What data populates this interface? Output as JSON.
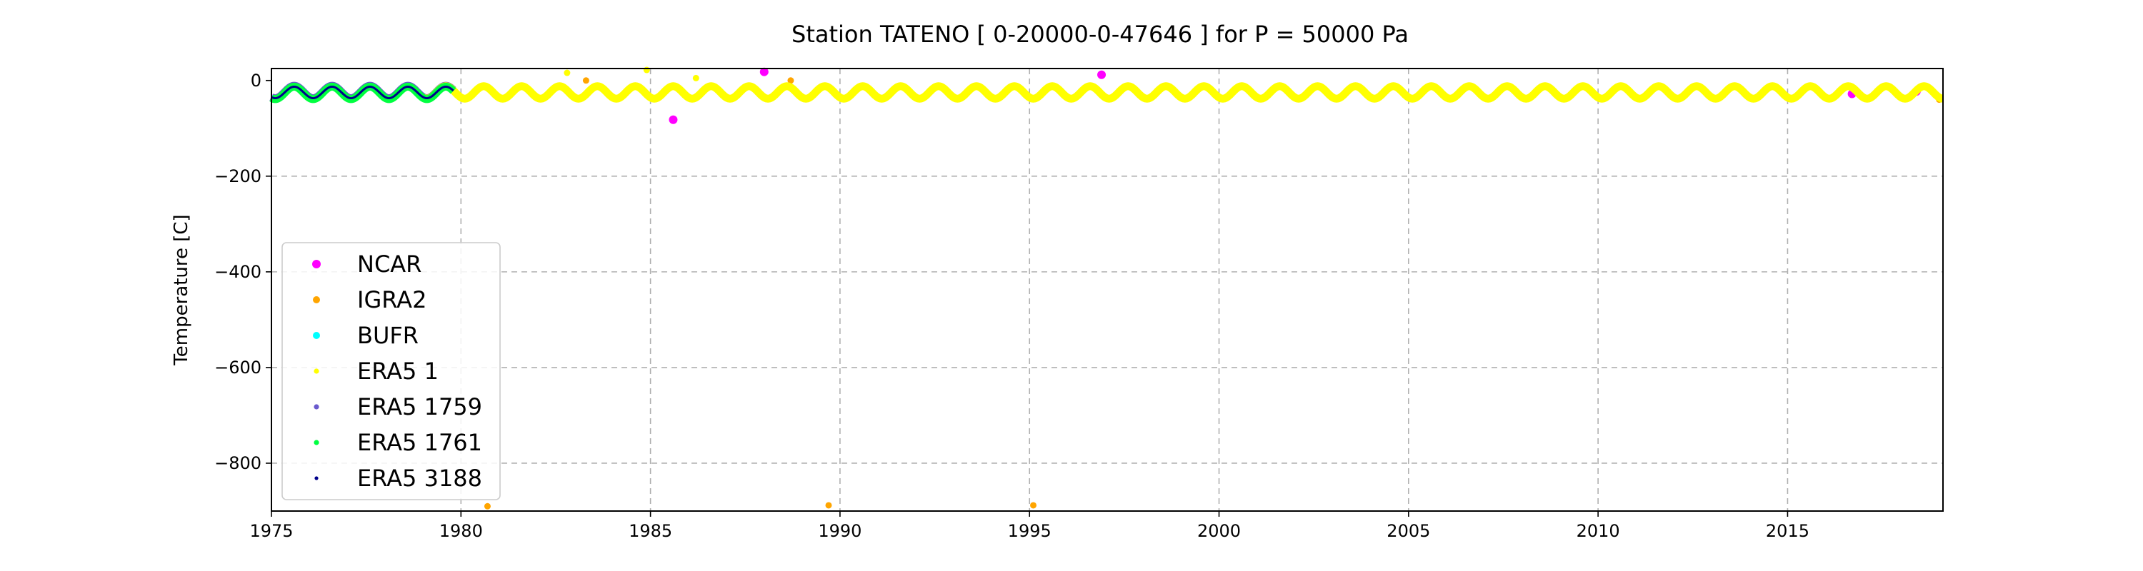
{
  "chart_data": {
    "type": "scatter",
    "title": "Station  TATENO [ 0-20000-0-47646 ]  for P = 50000 Pa",
    "xlabel": "",
    "ylabel": "Temperature [C]",
    "xlim": [
      1975,
      2019.1
    ],
    "ylim": [
      -900,
      25
    ],
    "xticks": [
      1975,
      1980,
      1985,
      1990,
      1995,
      2000,
      2005,
      2010,
      2015
    ],
    "xtick_labels": [
      "1975",
      "1980",
      "1985",
      "1990",
      "1995",
      "2000",
      "2005",
      "2010",
      "2015"
    ],
    "yticks": [
      0,
      -200,
      -400,
      -600,
      -800
    ],
    "ytick_labels": [
      "0",
      "−200",
      "−400",
      "−600",
      "−800"
    ],
    "grid": true,
    "legend_position": "lower-left",
    "series": [
      {
        "name": "NCAR",
        "color": "#ff00ff",
        "marker_size": "large",
        "x_range": [
          1975.0,
          2019.1
        ],
        "mean": -23,
        "amplitude": 13,
        "outliers": [
          [
            1985.6,
            -82
          ],
          [
            1996.9,
            12
          ],
          [
            2016.7,
            -28
          ],
          [
            2018.4,
            -23
          ],
          [
            1988.0,
            18
          ]
        ]
      },
      {
        "name": "IGRA2",
        "color": "#ffa500",
        "marker_size": "medium",
        "x_range": [
          1980.0,
          2019.1
        ],
        "mean": -24,
        "amplitude": 13,
        "outliers": [
          [
            1980.7,
            -890
          ],
          [
            1989.7,
            -888
          ],
          [
            1995.1,
            -888
          ],
          [
            1983.3,
            0
          ],
          [
            1988.7,
            0
          ],
          [
            2019.0,
            -40
          ]
        ]
      },
      {
        "name": "BUFR",
        "color": "#00ffff",
        "marker_size": "medium",
        "x_range": [
          1975.0,
          1979.8
        ],
        "mean": -24,
        "amplitude": 13,
        "outliers": []
      },
      {
        "name": "ERA5 1",
        "color": "#ffff00",
        "marker_size": "small",
        "x_range": [
          1979.0,
          2019.1
        ],
        "mean": -25,
        "amplitude": 13,
        "outliers": [
          [
            1982.8,
            16
          ],
          [
            1984.9,
            22
          ],
          [
            1986.2,
            5
          ]
        ]
      },
      {
        "name": "ERA5 1759",
        "color": "#6a5acd",
        "marker_size": "small",
        "x_range": [
          1975.0,
          1979.8
        ],
        "mean": -24,
        "amplitude": 13,
        "outliers": []
      },
      {
        "name": "ERA5 1761",
        "color": "#00ff40",
        "marker_size": "small",
        "x_range": [
          1975.0,
          1979.8
        ],
        "mean": -26,
        "amplitude": 13,
        "outliers": []
      },
      {
        "name": "ERA5 3188",
        "color": "#00008b",
        "marker_size": "tiny",
        "x_range": [
          1975.0,
          1979.8
        ],
        "mean": -25,
        "amplitude": 12,
        "outliers": []
      }
    ]
  }
}
